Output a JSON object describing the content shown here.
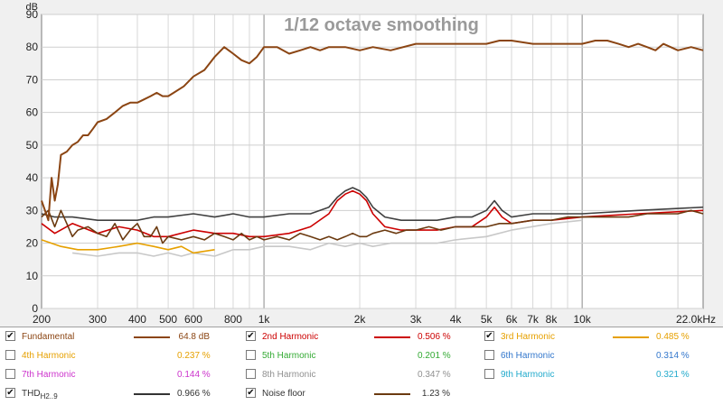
{
  "chart_data": {
    "type": "line",
    "title": "1/12 octave smoothing",
    "ylabel": "dB",
    "xscale": "log",
    "xlim": [
      200,
      24000
    ],
    "ylim": [
      0,
      90
    ],
    "yticks": [
      0,
      10,
      20,
      30,
      40,
      50,
      60,
      70,
      80,
      90
    ],
    "xtick_labels": [
      {
        "f": 200,
        "label": "200"
      },
      {
        "f": 300,
        "label": "300"
      },
      {
        "f": 400,
        "label": "400"
      },
      {
        "f": 500,
        "label": "500"
      },
      {
        "f": 600,
        "label": "600"
      },
      {
        "f": 800,
        "label": "800"
      },
      {
        "f": 1000,
        "label": "1k"
      },
      {
        "f": 2000,
        "label": "2k"
      },
      {
        "f": 3000,
        "label": "3k"
      },
      {
        "f": 4000,
        "label": "4k"
      },
      {
        "f": 5000,
        "label": "5k"
      },
      {
        "f": 6000,
        "label": "6k"
      },
      {
        "f": 7000,
        "label": "7k"
      },
      {
        "f": 8000,
        "label": "8k"
      },
      {
        "f": 10000,
        "label": "10k"
      },
      {
        "f": 22000,
        "label": "22.0kHz"
      }
    ],
    "series": [
      {
        "name": "Fundamental",
        "color": "#8b4513",
        "x": [
          200,
          205,
          210,
          215,
          220,
          225,
          230,
          240,
          250,
          260,
          270,
          280,
          290,
          300,
          320,
          340,
          360,
          380,
          400,
          420,
          440,
          460,
          480,
          500,
          520,
          560,
          600,
          650,
          700,
          750,
          800,
          850,
          900,
          950,
          1000,
          1100,
          1200,
          1300,
          1400,
          1500,
          1600,
          1800,
          2000,
          2200,
          2500,
          3000,
          3500,
          4000,
          4500,
          5000,
          5500,
          6000,
          7000,
          8000,
          9000,
          10000,
          11000,
          12000,
          13000,
          14000,
          15000,
          16000,
          17000,
          18000,
          20000,
          22000,
          24000
        ],
        "y": [
          33,
          30,
          27,
          40,
          33,
          38,
          47,
          48,
          50,
          51,
          53,
          53,
          55,
          57,
          58,
          60,
          62,
          63,
          63,
          64,
          65,
          66,
          65,
          65,
          66,
          68,
          71,
          73,
          77,
          80,
          78,
          76,
          75,
          77,
          80,
          80,
          78,
          79,
          80,
          79,
          80,
          80,
          79,
          80,
          79,
          81,
          81,
          81,
          81,
          81,
          82,
          82,
          81,
          81,
          81,
          81,
          82,
          82,
          81,
          80,
          81,
          80,
          79,
          81,
          79,
          80,
          79
        ]
      },
      {
        "name": "2nd Harmonic",
        "color": "#cc0000",
        "x": [
          200,
          220,
          250,
          300,
          350,
          400,
          450,
          500,
          600,
          700,
          800,
          900,
          1000,
          1200,
          1400,
          1600,
          1700,
          1800,
          1900,
          2000,
          2100,
          2200,
          2400,
          2700,
          3000,
          3500,
          4000,
          4500,
          5000,
          5300,
          5600,
          6000,
          7000,
          8000,
          10000,
          15000,
          24000
        ],
        "y": [
          26,
          23,
          26,
          23,
          25,
          24,
          22,
          22,
          24,
          23,
          23,
          22,
          22,
          23,
          25,
          29,
          33,
          35,
          36,
          35,
          33,
          29,
          25,
          24,
          24,
          24,
          25,
          25,
          28,
          31,
          28,
          26,
          27,
          27,
          28,
          29,
          30
        ]
      },
      {
        "name": "3rd Harmonic",
        "color": "#e6a000",
        "x": [
          200,
          230,
          260,
          300,
          350,
          400,
          450,
          500,
          550,
          600,
          700
        ],
        "y": [
          21,
          19,
          18,
          18,
          19,
          20,
          19,
          18,
          19,
          17,
          18
        ]
      },
      {
        "name": "5th Harmonic",
        "color": "#33aa33",
        "x": [],
        "y": []
      },
      {
        "name": "THD H2..9",
        "color": "#404040",
        "x": [
          200,
          220,
          250,
          300,
          350,
          400,
          450,
          500,
          600,
          700,
          800,
          900,
          1000,
          1200,
          1400,
          1600,
          1700,
          1800,
          1900,
          2000,
          2100,
          2200,
          2400,
          2700,
          3000,
          3500,
          4000,
          4500,
          5000,
          5300,
          5600,
          6000,
          7000,
          8000,
          10000,
          15000,
          24000
        ],
        "y": [
          29,
          28,
          28,
          27,
          27,
          27,
          28,
          28,
          29,
          28,
          29,
          28,
          28,
          29,
          29,
          31,
          34,
          36,
          37,
          36,
          34,
          31,
          28,
          27,
          27,
          27,
          28,
          28,
          30,
          33,
          30,
          28,
          29,
          29,
          29,
          30,
          31
        ]
      },
      {
        "name": "Noise floor",
        "color": "#6b3a10",
        "x": [
          200,
          210,
          220,
          230,
          240,
          250,
          260,
          280,
          300,
          320,
          340,
          360,
          380,
          400,
          420,
          440,
          460,
          480,
          500,
          550,
          600,
          650,
          700,
          750,
          800,
          850,
          900,
          950,
          1000,
          1100,
          1200,
          1300,
          1400,
          1500,
          1600,
          1700,
          1800,
          1900,
          2000,
          2100,
          2200,
          2400,
          2600,
          2800,
          3000,
          3300,
          3600,
          4000,
          4500,
          5000,
          5500,
          6000,
          7000,
          8000,
          9000,
          10000,
          12000,
          14000,
          16000,
          18000,
          20000,
          22000,
          24000
        ],
        "y": [
          28,
          30,
          25,
          30,
          26,
          22,
          24,
          25,
          23,
          22,
          26,
          21,
          24,
          26,
          22,
          22,
          25,
          20,
          22,
          21,
          22,
          21,
          23,
          22,
          21,
          23,
          21,
          22,
          21,
          22,
          21,
          23,
          22,
          21,
          22,
          21,
          22,
          23,
          22,
          22,
          23,
          24,
          23,
          24,
          24,
          25,
          24,
          25,
          25,
          25,
          26,
          26,
          27,
          27,
          28,
          28,
          28,
          28,
          29,
          29,
          29,
          30,
          29
        ]
      },
      {
        "name": "8th Harmonic",
        "color": "#c8c8c8",
        "x": [
          250,
          300,
          350,
          400,
          450,
          500,
          550,
          600,
          700,
          800,
          900,
          1000,
          1200,
          1400,
          1600,
          1800,
          2000,
          2200,
          2500,
          3000,
          3500,
          4000,
          5000,
          6000,
          8000,
          10000
        ],
        "y": [
          17,
          16,
          17,
          17,
          16,
          17,
          16,
          17,
          16,
          18,
          18,
          19,
          19,
          18,
          20,
          19,
          20,
          19,
          20,
          20,
          20,
          21,
          22,
          24,
          26,
          27
        ]
      }
    ]
  },
  "legend": {
    "rows": [
      [
        {
          "label": "Fundamental",
          "value": "64.8 dB",
          "checked": true,
          "color": "#8b4513",
          "swatch": "#8b4513"
        },
        {
          "label": "2nd Harmonic",
          "value": "0.506 %",
          "checked": true,
          "color": "#cc0000",
          "swatch": "#cc0000"
        },
        {
          "label": "3rd Harmonic",
          "value": "0.485 %",
          "checked": true,
          "color": "#e6a000",
          "swatch": "#e6a000"
        }
      ],
      [
        {
          "label": "4th Harmonic",
          "value": "0.237 %",
          "checked": false,
          "color": "#e6a000",
          "swatch": ""
        },
        {
          "label": "5th Harmonic",
          "value": "0.201 %",
          "checked": false,
          "color": "#33aa33",
          "swatch": ""
        },
        {
          "label": "6th Harmonic",
          "value": "0.314 %",
          "checked": false,
          "color": "#3377cc",
          "swatch": ""
        }
      ],
      [
        {
          "label": "7th Harmonic",
          "value": "0.144 %",
          "checked": false,
          "color": "#cc33cc",
          "swatch": ""
        },
        {
          "label": "8th Harmonic",
          "value": "0.347 %",
          "checked": false,
          "color": "#909090",
          "swatch": ""
        },
        {
          "label": "9th Harmonic",
          "value": "0.321 %",
          "checked": false,
          "color": "#22aacc",
          "swatch": ""
        }
      ],
      [
        {
          "label": "THD",
          "sub": "H2..9",
          "value": "0.966 %",
          "checked": true,
          "color": "#333333",
          "swatch": "#333333"
        },
        {
          "label": "Noise floor",
          "value": "1.23 %",
          "checked": true,
          "color": "#333333",
          "swatch": "#6b3a10"
        }
      ]
    ]
  }
}
